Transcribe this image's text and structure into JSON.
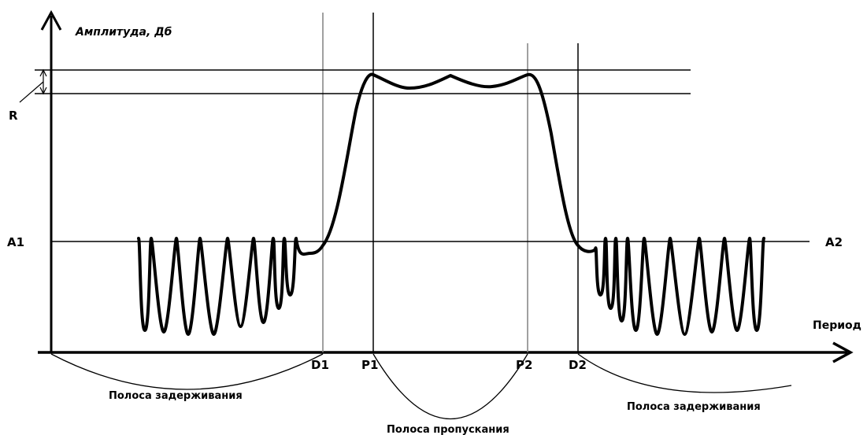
{
  "labels": {
    "y_axis": "Амплитуда, Дб",
    "x_axis": "Период",
    "ripple": "R",
    "a1": "A1",
    "a2": "A2",
    "d1": "D1",
    "p1": "P1",
    "p2": "P2",
    "d2": "D2",
    "stopband_left": "Полоса задерживания",
    "passband": "Полоса пропускания",
    "stopband_right": "Полоса задерживания"
  }
}
